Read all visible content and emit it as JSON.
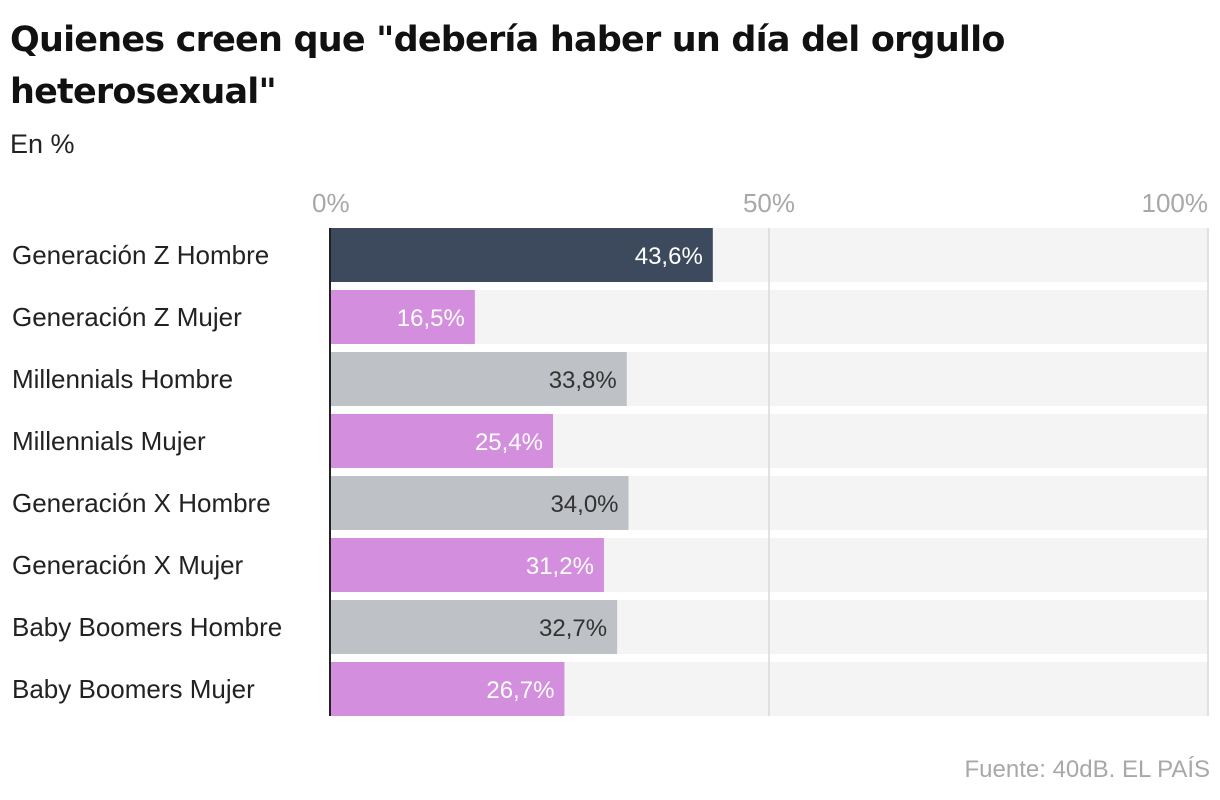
{
  "title": "Quienes creen que \"debería haber un día del orgullo heterosexual\"",
  "subtitle": "En %",
  "source": "Fuente: 40dB. EL PAÍS",
  "colors": {
    "highlight": "#3d4a5e",
    "mujer": "#d48ede",
    "hombre": "#bec1c5",
    "track": "#f4f4f4",
    "grid": "#d9d9d9",
    "axis": "#222222"
  },
  "chart_data": {
    "type": "bar",
    "orientation": "horizontal",
    "title": "Quienes creen que \"debería haber un día del orgullo heterosexual\"",
    "subtitle": "En %",
    "xlim": [
      0,
      100
    ],
    "x_ticks": [
      0,
      50,
      100
    ],
    "x_tick_labels": [
      "0%",
      "50%",
      "100%"
    ],
    "grid": true,
    "categories": [
      "Generación Z Hombre",
      "Generación Z Mujer",
      "Millennials Hombre",
      "Millennials Mujer",
      "Generación X Hombre",
      "Generación X Mujer",
      "Baby Boomers Hombre",
      "Baby Boomers Mujer"
    ],
    "values": [
      43.6,
      16.5,
      33.8,
      25.4,
      34.0,
      31.2,
      32.7,
      26.7
    ],
    "value_labels": [
      "43,6%",
      "16,5%",
      "33,8%",
      "25,4%",
      "34,0%",
      "31,2%",
      "32,7%",
      "26,7%"
    ],
    "bar_colors": [
      "highlight",
      "mujer",
      "hombre",
      "mujer",
      "hombre",
      "mujer",
      "hombre",
      "mujer"
    ],
    "label_colors": [
      "#ffffff",
      "#ffffff",
      "#333333",
      "#ffffff",
      "#333333",
      "#ffffff",
      "#333333",
      "#ffffff"
    ]
  }
}
